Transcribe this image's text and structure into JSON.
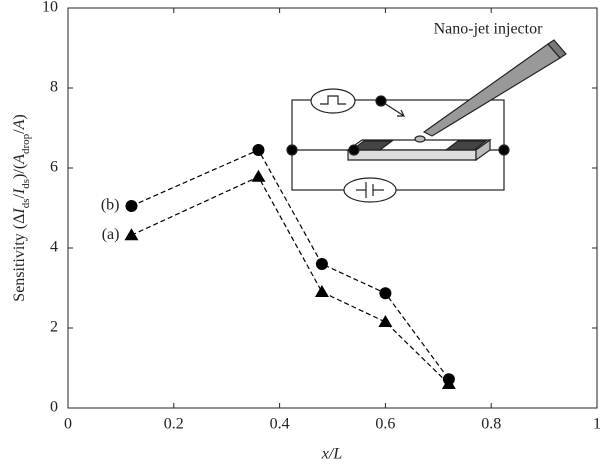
{
  "chart_data": {
    "type": "line",
    "x_label": "x/L",
    "y_label": [
      "Sensitivity (Δ",
      "I",
      "ds",
      "/",
      "I",
      "ds",
      ")/(",
      "A",
      "drop",
      "/",
      "A",
      ")"
    ],
    "annotation": "Nano-jet injector",
    "x": [
      0.12,
      0.36,
      0.48,
      0.6,
      0.72
    ],
    "series": [
      {
        "name": "(b)",
        "color": "#000000",
        "marker": "circle",
        "values": [
          5.05,
          6.45,
          3.6,
          2.87,
          0.72
        ]
      },
      {
        "name": "(a)",
        "color": "#000000",
        "marker": "triangle",
        "values": [
          4.32,
          5.78,
          2.9,
          2.15,
          0.6
        ]
      }
    ],
    "xlim": [
      0,
      1
    ],
    "xticks": [
      0,
      0.2,
      0.4,
      0.6,
      0.8,
      1
    ],
    "ylim": [
      0,
      10
    ],
    "yticks": [
      0,
      2,
      4,
      6,
      8,
      10
    ],
    "line_style": "dashed",
    "grid": false
  }
}
